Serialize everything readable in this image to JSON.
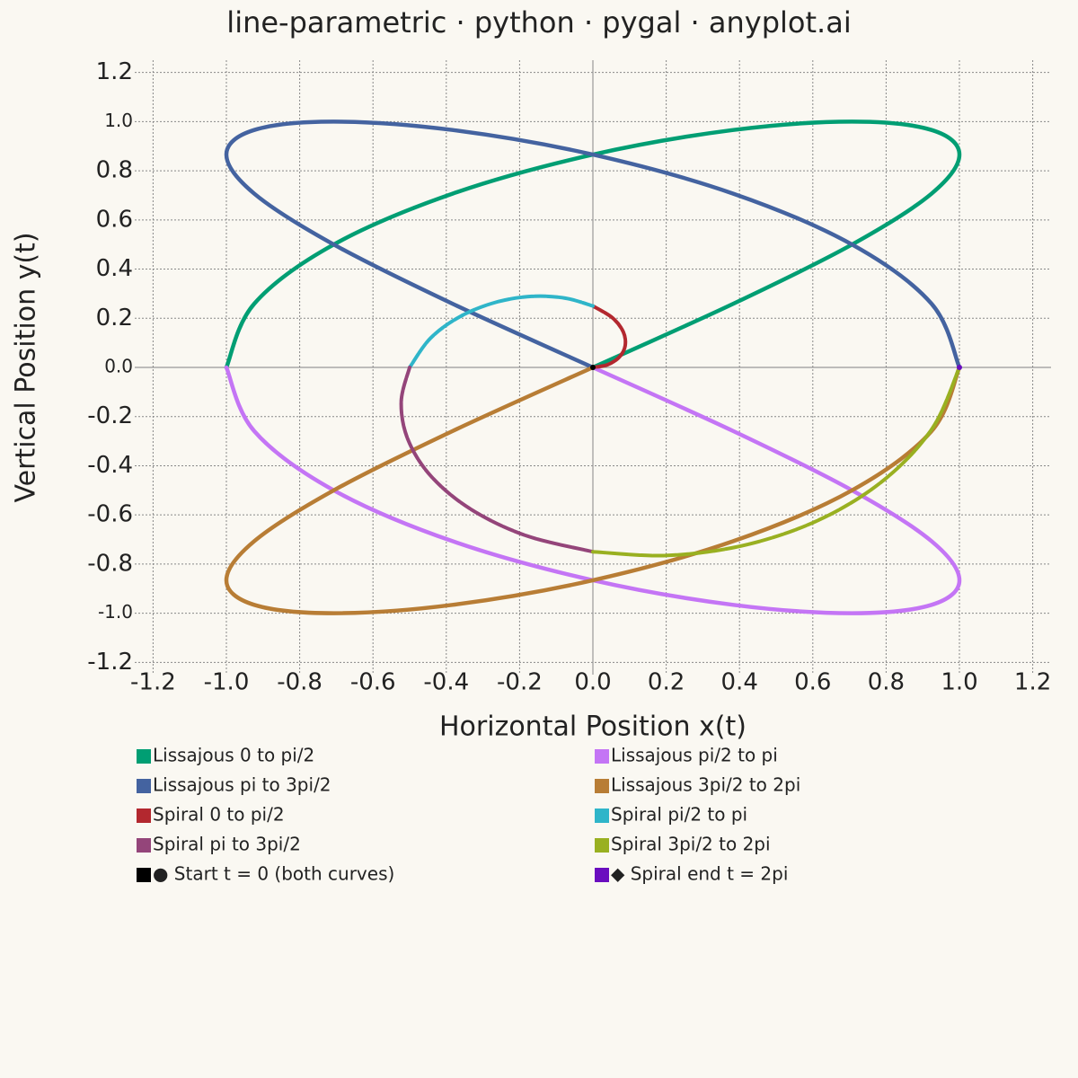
{
  "chart_data": {
    "type": "line",
    "title": "line-parametric · python · pygal · anyplot.ai",
    "x_label": "Horizontal Position x(t)",
    "y_label": "Vertical Position y(t)",
    "xlim": [
      -1.25,
      1.25
    ],
    "ylim": [
      -1.25,
      1.25
    ],
    "xticks": [
      -1.2,
      {
        "value": -1,
        "label": "-1.0"
      },
      -0.8,
      -0.6,
      -0.4,
      -0.2,
      {
        "value": 0,
        "label": "0.0"
      },
      0.2,
      0.4,
      0.6,
      0.8,
      {
        "value": 1,
        "label": "1.0"
      },
      1.2
    ],
    "yticks": [
      -1.2,
      {
        "value": -1,
        "label": "-1.0"
      },
      -0.8,
      -0.6,
      -0.4,
      -0.2,
      {
        "value": 0,
        "label": "0.0"
      },
      0.2,
      0.4,
      0.6,
      0.8,
      {
        "value": 1,
        "label": "1.0"
      },
      1.2
    ],
    "grid": true,
    "series": [
      {
        "name": "Lissajous 0 to pi/2",
        "color": "#009e73",
        "x": [
          0,
          0.383,
          0.707,
          0.924,
          1,
          0.924,
          0.707,
          0.383,
          0,
          -0.383,
          -0.707,
          -0.924,
          -1
        ],
        "values": [
          0,
          0.259,
          0.5,
          0.707,
          0.866,
          0.966,
          1,
          0.966,
          0.866,
          0.707,
          0.5,
          0.259,
          0
        ]
      },
      {
        "name": "Lissajous pi/2 to pi",
        "color": "#c475f5",
        "x": [
          -1,
          -0.924,
          -0.707,
          -0.383,
          0,
          0.383,
          0.707,
          0.924,
          1,
          0.924,
          0.707,
          0.383,
          0
        ],
        "values": [
          0,
          -0.259,
          -0.5,
          -0.707,
          -0.866,
          -0.966,
          -1,
          -0.966,
          -0.866,
          -0.707,
          -0.5,
          -0.259,
          0
        ]
      },
      {
        "name": "Lissajous pi to 3pi/2",
        "color": "#4463a0",
        "x": [
          0,
          -0.383,
          -0.707,
          -0.924,
          -1,
          -0.924,
          -0.707,
          -0.383,
          0,
          0.383,
          0.707,
          0.924,
          1
        ],
        "values": [
          0,
          0.259,
          0.5,
          0.707,
          0.866,
          0.966,
          1,
          0.966,
          0.866,
          0.707,
          0.5,
          0.259,
          0
        ]
      },
      {
        "name": "Lissajous 3pi/2 to 2pi",
        "color": "#b87d35",
        "x": [
          1,
          0.924,
          0.707,
          0.383,
          0,
          -0.383,
          -0.707,
          -0.924,
          -1,
          -0.924,
          -0.707,
          -0.383,
          0
        ],
        "values": [
          0,
          -0.259,
          -0.5,
          -0.707,
          -0.866,
          -0.966,
          -1,
          -0.966,
          -0.866,
          -0.707,
          -0.5,
          -0.259,
          0
        ]
      },
      {
        "name": "Spiral 0 to pi/2",
        "color": "#b3282f",
        "x": [
          0,
          0.04,
          0.072,
          0.088,
          0.083,
          0.054,
          0
        ],
        "values": [
          0,
          0.011,
          0.042,
          0.088,
          0.144,
          0.201,
          0.25
        ]
      },
      {
        "name": "Spiral pi/2 to pi",
        "color": "#2fb5c9",
        "x": [
          0,
          -0.076,
          -0.167,
          -0.265,
          -0.361,
          -0.443,
          -0.5
        ],
        "values": [
          0.25,
          0.282,
          0.289,
          0.265,
          0.208,
          0.119,
          0
        ]
      },
      {
        "name": "Spiral pi to 3pi/2",
        "color": "#94457a",
        "x": [
          -0.5,
          -0.523,
          -0.505,
          -0.442,
          -0.333,
          -0.183,
          0
        ],
        "values": [
          0,
          -0.14,
          -0.292,
          -0.442,
          -0.577,
          -0.684,
          -0.75
        ]
      },
      {
        "name": "Spiral 3pi/2 to 2pi",
        "color": "#99b021",
        "x": [
          0,
          0.205,
          0.417,
          0.619,
          0.794,
          0.926,
          1
        ],
        "values": [
          -0.75,
          -0.765,
          -0.722,
          -0.619,
          -0.458,
          -0.248,
          0
        ]
      },
      {
        "name": "● Start t = 0 (both curves)",
        "color": "#000000",
        "x": [
          0
        ],
        "values": [
          0
        ]
      },
      {
        "name": "◆ Spiral end t = 2pi",
        "color": "#6a0dbf",
        "x": [
          1
        ],
        "values": [
          0
        ]
      }
    ]
  }
}
